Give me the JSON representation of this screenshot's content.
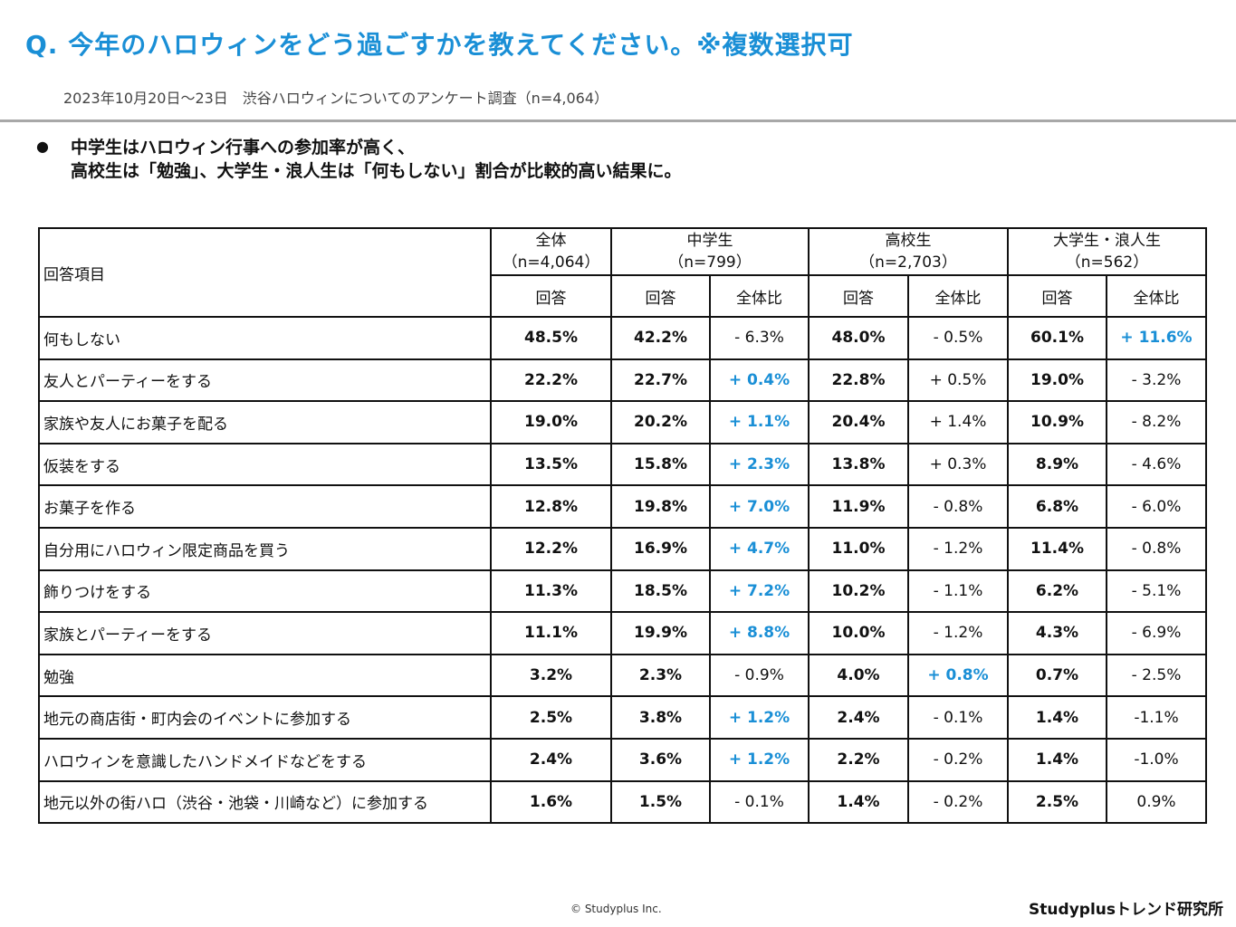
{
  "header": {
    "title": "Q. 今年のハロウィンをどう過ごすかを教えてください。※複数選択可",
    "subtitle": "2023年10月20日〜23日　渋谷ハロウィンについてのアンケート調査（n=4,064）"
  },
  "summary": {
    "bullet": "●",
    "line1": "中学生はハロウィン行事への参加率が高く、",
    "line2": "高校生は「勉強」、大学生・浪人生は「何もしない」割合が比較的高い結果に。"
  },
  "table": {
    "item_header": "回答項目",
    "overall": {
      "name": "全体",
      "n": "（n=4,064）",
      "answer": "回答"
    },
    "groups": [
      {
        "name": "中学生",
        "n": "（n=799）",
        "answer": "回答",
        "ratio": "全体比"
      },
      {
        "name": "高校生",
        "n": "（n=2,703）",
        "answer": "回答",
        "ratio": "全体比"
      },
      {
        "name": "大学生・浪人生",
        "n": "（n=562）",
        "answer": "回答",
        "ratio": "全体比"
      }
    ],
    "rows": [
      {
        "item": "何もしない",
        "all": "48.5%",
        "jh": "42.2%",
        "jh_diff": "- 6.3%",
        "hs": "48.0%",
        "hs_diff": "- 0.5%",
        "univ": "60.1%",
        "univ_diff": "+ 11.6%"
      },
      {
        "item": "友人とパーティーをする",
        "all": "22.2%",
        "jh": "22.7%",
        "jh_diff": "+ 0.4%",
        "hs": "22.8%",
        "hs_diff": "+ 0.5%",
        "univ": "19.0%",
        "univ_diff": "- 3.2%"
      },
      {
        "item": "家族や友人にお菓子を配る",
        "all": "19.0%",
        "jh": "20.2%",
        "jh_diff": "+ 1.1%",
        "hs": "20.4%",
        "hs_diff": "+ 1.4%",
        "univ": "10.9%",
        "univ_diff": "- 8.2%"
      },
      {
        "item": "仮装をする",
        "all": "13.5%",
        "jh": "15.8%",
        "jh_diff": "+ 2.3%",
        "hs": "13.8%",
        "hs_diff": "+ 0.3%",
        "univ": "8.9%",
        "univ_diff": "- 4.6%"
      },
      {
        "item": "お菓子を作る",
        "all": "12.8%",
        "jh": "19.8%",
        "jh_diff": "+ 7.0%",
        "hs": "11.9%",
        "hs_diff": "- 0.8%",
        "univ": "6.8%",
        "univ_diff": "- 6.0%"
      },
      {
        "item": "自分用にハロウィン限定商品を買う",
        "all": "12.2%",
        "jh": "16.9%",
        "jh_diff": "+ 4.7%",
        "hs": "11.0%",
        "hs_diff": "- 1.2%",
        "univ": "11.4%",
        "univ_diff": "- 0.8%"
      },
      {
        "item": "飾りつけをする",
        "all": "11.3%",
        "jh": "18.5%",
        "jh_diff": "+ 7.2%",
        "hs": "10.2%",
        "hs_diff": "- 1.1%",
        "univ": "6.2%",
        "univ_diff": "- 5.1%"
      },
      {
        "item": "家族とパーティーをする",
        "all": "11.1%",
        "jh": "19.9%",
        "jh_diff": "+ 8.8%",
        "hs": "10.0%",
        "hs_diff": "- 1.2%",
        "univ": "4.3%",
        "univ_diff": "- 6.9%"
      },
      {
        "item": "勉強",
        "all": "3.2%",
        "jh": "2.3%",
        "jh_diff": "- 0.9%",
        "hs": "4.0%",
        "hs_diff": "+ 0.8%",
        "univ": "0.7%",
        "univ_diff": "- 2.5%"
      },
      {
        "item": "地元の商店街・町内会のイベントに参加する",
        "all": "2.5%",
        "jh": "3.8%",
        "jh_diff": "+ 1.2%",
        "hs": "2.4%",
        "hs_diff": "- 0.1%",
        "univ": "1.4%",
        "univ_diff": "-1.1%"
      },
      {
        "item": "ハロウィンを意識したハンドメイドなどをする",
        "all": "2.4%",
        "jh": "3.6%",
        "jh_diff": "+ 1.2%",
        "hs": "2.2%",
        "hs_diff": "- 0.2%",
        "univ": "1.4%",
        "univ_diff": "-1.0%"
      },
      {
        "item": "地元以外の街ハロ（渋谷・池袋・川崎など）に参加する",
        "all": "1.6%",
        "jh": "1.5%",
        "jh_diff": "- 0.1%",
        "hs": "1.4%",
        "hs_diff": "- 0.2%",
        "univ": "2.5%",
        "univ_diff": "0.9%"
      }
    ],
    "highlight": {
      "jh_diff": [
        false,
        true,
        true,
        true,
        true,
        true,
        true,
        true,
        false,
        true,
        true,
        false
      ],
      "hs_diff": [
        false,
        false,
        false,
        false,
        false,
        false,
        false,
        false,
        true,
        false,
        false,
        false
      ],
      "univ_diff": [
        true,
        false,
        false,
        false,
        false,
        false,
        false,
        false,
        false,
        false,
        false,
        false
      ]
    },
    "highlight_color": "#1a8fd6"
  },
  "footer": {
    "copyright": "© Studyplus Inc.",
    "brand": "Studyplusトレンド研究所"
  }
}
